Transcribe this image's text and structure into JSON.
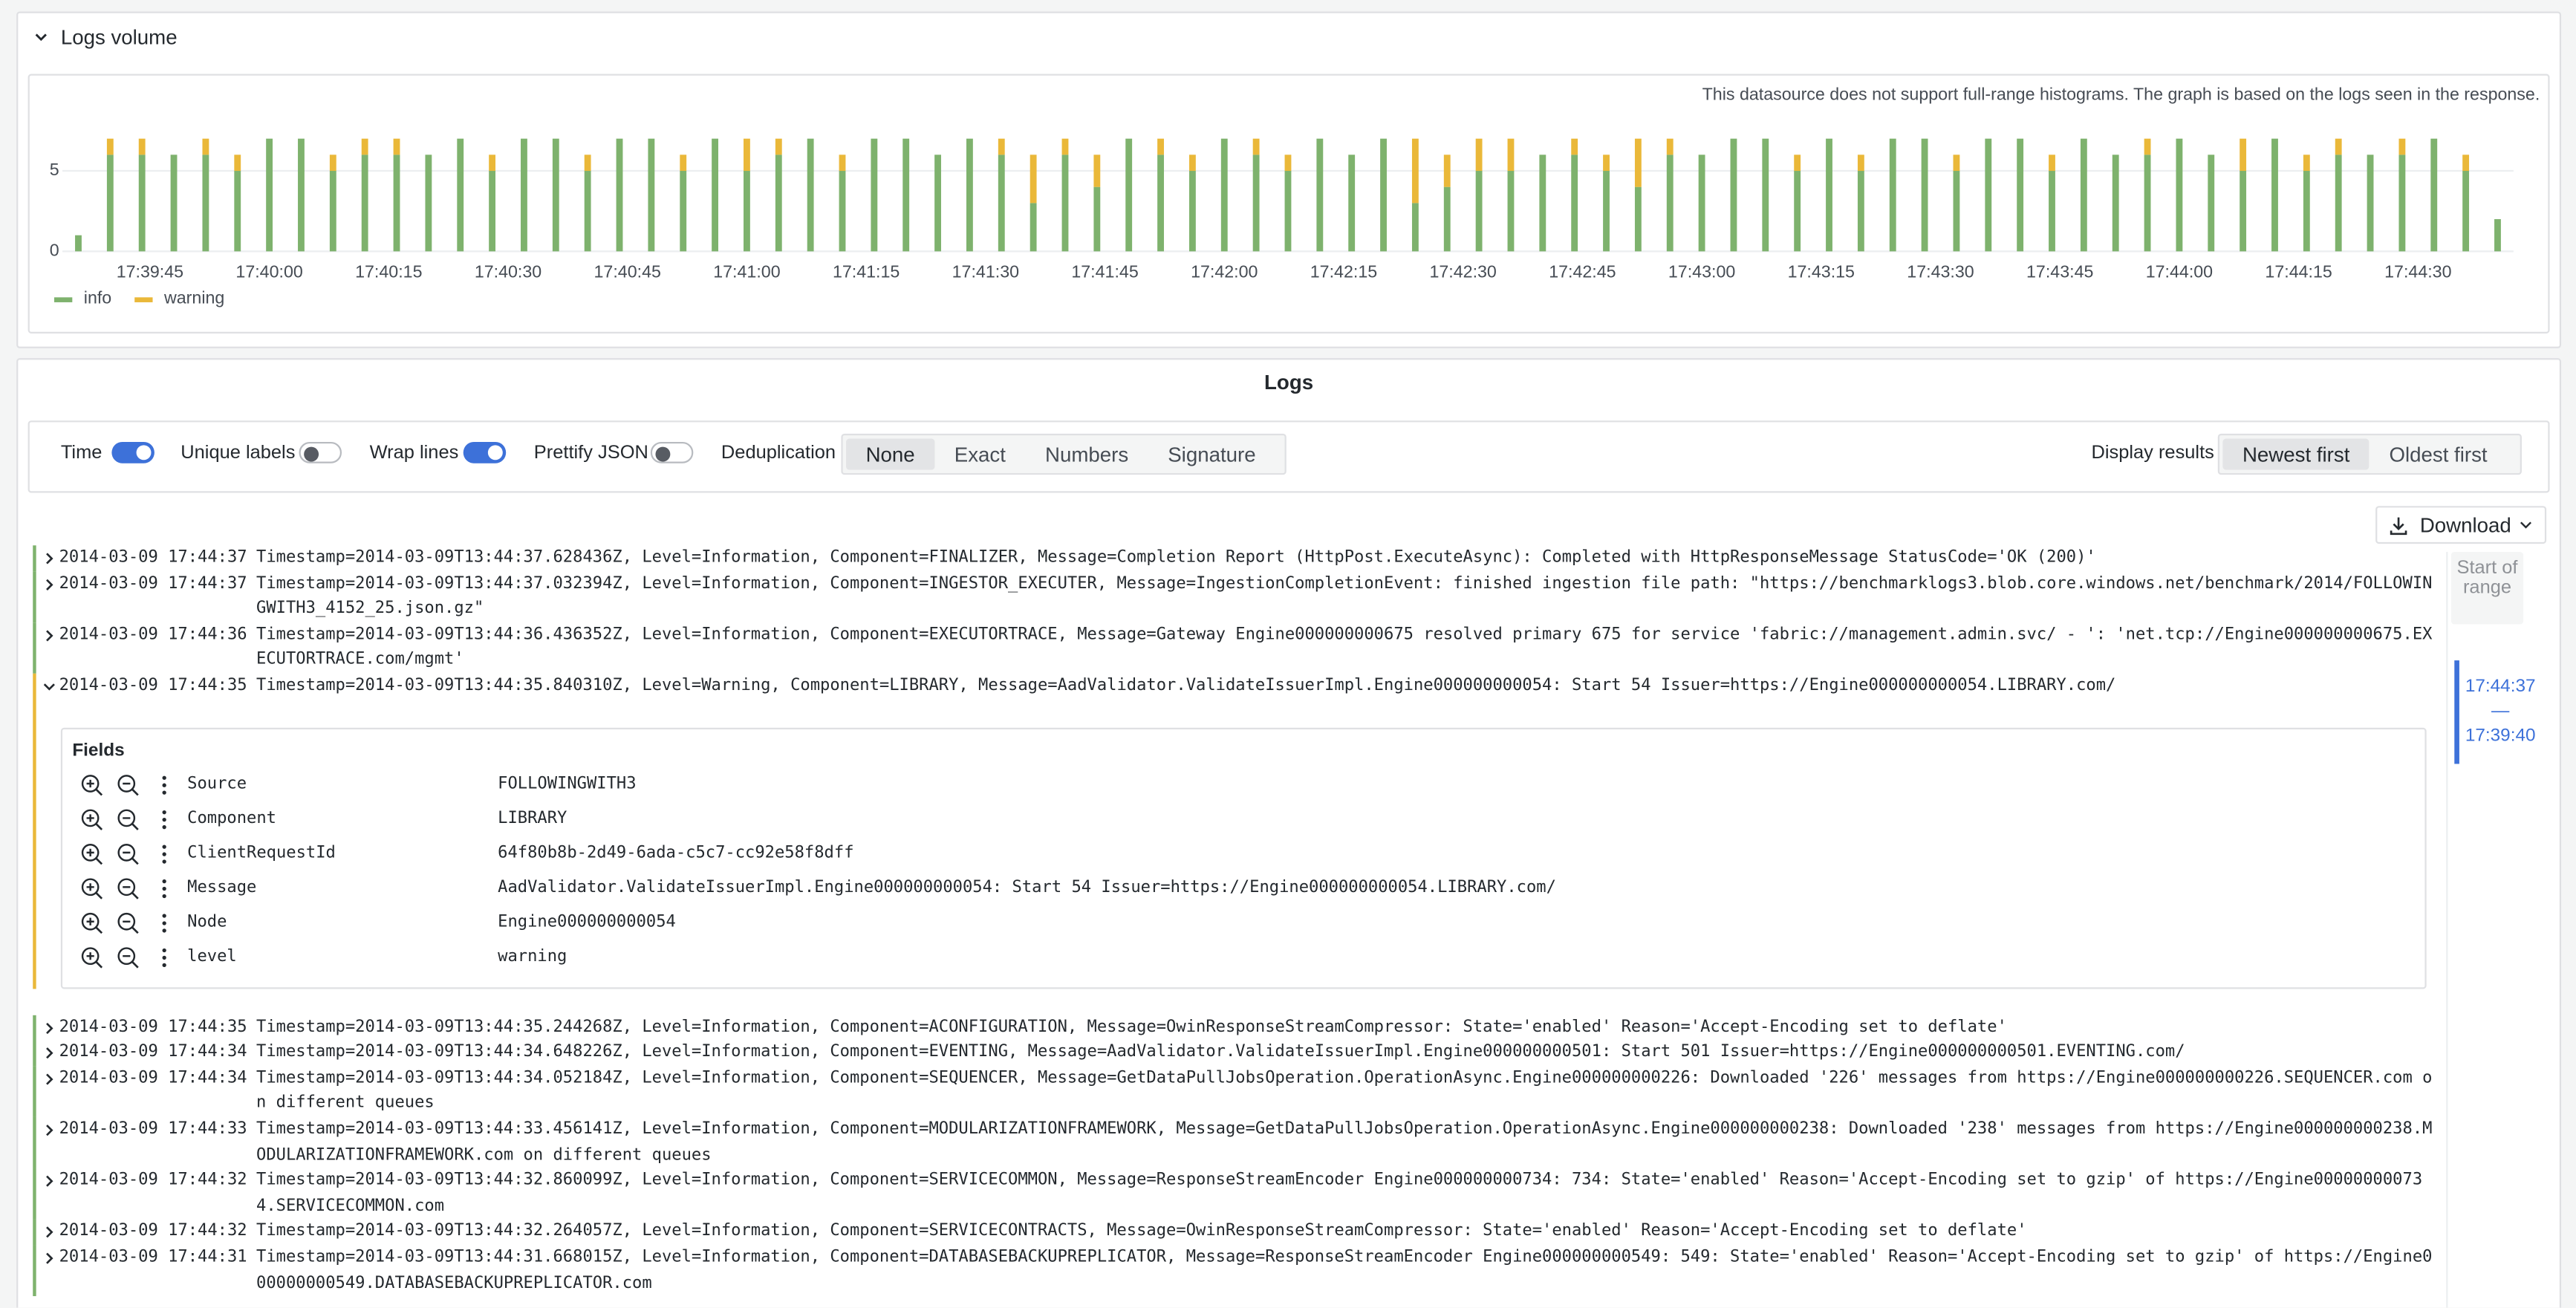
{
  "header": {
    "title": "Logs volume"
  },
  "chart_data": {
    "type": "bar",
    "stacked": true,
    "note": "This datasource does not support full-range histograms. The graph is based on the logs seen in the response.",
    "x": [
      "17:39:36",
      "17:39:40",
      "17:39:44",
      "17:39:48",
      "17:39:52",
      "17:39:56",
      "17:40:00",
      "17:40:04",
      "17:40:08",
      "17:40:12",
      "17:40:16",
      "17:40:20",
      "17:40:24",
      "17:40:28",
      "17:40:32",
      "17:40:36",
      "17:40:40",
      "17:40:44",
      "17:40:48",
      "17:40:52",
      "17:40:56",
      "17:41:00",
      "17:41:04",
      "17:41:08",
      "17:41:12",
      "17:41:16",
      "17:41:20",
      "17:41:24",
      "17:41:28",
      "17:41:32",
      "17:41:36",
      "17:41:40",
      "17:41:44",
      "17:41:48",
      "17:41:52",
      "17:41:56",
      "17:42:00",
      "17:42:04",
      "17:42:08",
      "17:42:12",
      "17:42:16",
      "17:42:20",
      "17:42:24",
      "17:42:28",
      "17:42:32",
      "17:42:36",
      "17:42:40",
      "17:42:44",
      "17:42:48",
      "17:42:52",
      "17:42:56",
      "17:43:00",
      "17:43:04",
      "17:43:08",
      "17:43:12",
      "17:43:16",
      "17:43:20",
      "17:43:24",
      "17:43:28",
      "17:43:32",
      "17:43:36",
      "17:43:40",
      "17:43:44",
      "17:43:48",
      "17:43:52",
      "17:43:56",
      "17:44:00",
      "17:44:04",
      "17:44:08",
      "17:44:12",
      "17:44:16",
      "17:44:20",
      "17:44:24",
      "17:44:28",
      "17:44:32",
      "17:44:36",
      "17:44:40"
    ],
    "series": [
      {
        "name": "info",
        "color": "#7eb26d",
        "values": [
          1,
          6,
          6,
          6,
          6,
          5,
          7,
          7,
          5,
          6,
          6,
          6,
          7,
          5,
          7,
          7,
          5,
          7,
          7,
          5,
          7,
          5,
          6,
          7,
          5,
          7,
          7,
          6,
          7,
          6,
          3,
          6,
          4,
          7,
          6,
          5,
          7,
          6,
          5,
          7,
          6,
          7,
          3,
          4,
          5,
          5,
          6,
          6,
          5,
          4,
          6,
          6,
          7,
          7,
          5,
          7,
          5,
          7,
          7,
          5,
          7,
          7,
          5,
          7,
          6,
          6,
          7,
          6,
          5,
          7,
          5,
          6,
          6,
          6,
          7,
          5,
          2
        ]
      },
      {
        "name": "warning",
        "color": "#eab839",
        "values": [
          0,
          1,
          1,
          0,
          1,
          1,
          0,
          0,
          1,
          1,
          1,
          0,
          0,
          1,
          0,
          0,
          1,
          0,
          0,
          1,
          0,
          2,
          1,
          0,
          1,
          0,
          0,
          0,
          0,
          1,
          3,
          1,
          2,
          0,
          1,
          1,
          0,
          1,
          1,
          0,
          0,
          0,
          4,
          2,
          2,
          2,
          0,
          1,
          1,
          3,
          1,
          0,
          0,
          0,
          1,
          0,
          1,
          0,
          0,
          1,
          0,
          0,
          1,
          0,
          0,
          1,
          0,
          0,
          2,
          0,
          1,
          1,
          0,
          1,
          0,
          1,
          0
        ]
      }
    ],
    "xlim": [
      "17:39:34",
      "17:44:42"
    ],
    "xticks": [
      "17:39:45",
      "17:40:00",
      "17:40:15",
      "17:40:30",
      "17:40:45",
      "17:41:00",
      "17:41:15",
      "17:41:30",
      "17:41:45",
      "17:42:00",
      "17:42:15",
      "17:42:30",
      "17:42:45",
      "17:43:00",
      "17:43:15",
      "17:43:30",
      "17:43:45",
      "17:44:00",
      "17:44:15",
      "17:44:30"
    ],
    "ylim": [
      0,
      7.5
    ],
    "yticks": [
      0,
      5
    ],
    "grid": true,
    "legend": "bottom-left"
  },
  "logs": {
    "title": "Logs",
    "toggles": [
      {
        "label": "Time",
        "on": true
      },
      {
        "label": "Unique labels",
        "on": false
      },
      {
        "label": "Wrap lines",
        "on": true
      },
      {
        "label": "Prettify JSON",
        "on": false
      }
    ],
    "dedup_label": "Deduplication",
    "dedup_options": [
      {
        "label": "None",
        "selected": true
      },
      {
        "label": "Exact",
        "selected": false
      },
      {
        "label": "Numbers",
        "selected": false
      },
      {
        "label": "Signature",
        "selected": false
      }
    ],
    "display_label": "Display results",
    "display_options": [
      {
        "label": "Newest first",
        "selected": true
      },
      {
        "label": "Oldest first",
        "selected": false
      }
    ],
    "download": "Download",
    "rows": [
      {
        "level": "info",
        "time": "2014-03-09 17:44:37",
        "message": "Timestamp=2014-03-09T13:44:37.628436Z, Level=Information, Component=FINALIZER, Message=Completion Report (HttpPost.ExecuteAsync): Completed with HttpResponseMessage StatusCode='OK (200)'"
      },
      {
        "level": "info",
        "time": "2014-03-09 17:44:37",
        "message": "Timestamp=2014-03-09T13:44:37.032394Z, Level=Information, Component=INGESTOR_EXECUTER, Message=IngestionCompletionEvent: finished ingestion file path: \"https://benchmarklogs3.blob.core.windows.net/benchmark/2014/FOLLOWINGWITH3_4152_25.json.gz\""
      },
      {
        "level": "info",
        "time": "2014-03-09 17:44:36",
        "message": "Timestamp=2014-03-09T13:44:36.436352Z, Level=Information, Component=EXECUTORTRACE, Message=Gateway Engine000000000675 resolved primary 675 for service 'fabric://management.admin.svc/ - ': 'net.tcp://Engine000000000675.EXECUTORTRACE.com/mgmt'"
      },
      {
        "level": "warning",
        "time": "2014-03-09 17:44:35",
        "message": "Timestamp=2014-03-09T13:44:35.840310Z, Level=Warning, Component=LIBRARY, Message=AadValidator.ValidateIssuerImpl.Engine000000000054: Start 54 Issuer=https://Engine000000000054.LIBRARY.com/",
        "details": {
          "title": "Fields",
          "fields": [
            {
              "name": "Source",
              "value": "FOLLOWINGWITH3"
            },
            {
              "name": "Component",
              "value": "LIBRARY"
            },
            {
              "name": "ClientRequestId",
              "value": "64f80b8b-2d49-6ada-c5c7-cc92e58f8dff"
            },
            {
              "name": "Message",
              "value": "AadValidator.ValidateIssuerImpl.Engine000000000054: Start 54 Issuer=https://Engine000000000054.LIBRARY.com/"
            },
            {
              "name": "Node",
              "value": "Engine000000000054"
            },
            {
              "name": "level",
              "value": "warning"
            }
          ]
        }
      },
      {
        "level": "info",
        "time": "2014-03-09 17:44:35",
        "message": "Timestamp=2014-03-09T13:44:35.244268Z, Level=Information, Component=ACONFIGURATION, Message=OwinResponseStreamCompressor: State='enabled' Reason='Accept-Encoding set to deflate'"
      },
      {
        "level": "info",
        "time": "2014-03-09 17:44:34",
        "message": "Timestamp=2014-03-09T13:44:34.648226Z, Level=Information, Component=EVENTING, Message=AadValidator.ValidateIssuerImpl.Engine000000000501: Start 501 Issuer=https://Engine000000000501.EVENTING.com/"
      },
      {
        "level": "info",
        "time": "2014-03-09 17:44:34",
        "message": "Timestamp=2014-03-09T13:44:34.052184Z, Level=Information, Component=SEQUENCER, Message=GetDataPullJobsOperation.OperationAsync.Engine000000000226: Downloaded '226' messages from https://Engine000000000226.SEQUENCER.com on different queues"
      },
      {
        "level": "info",
        "time": "2014-03-09 17:44:33",
        "message": "Timestamp=2014-03-09T13:44:33.456141Z, Level=Information, Component=MODULARIZATIONFRAMEWORK, Message=GetDataPullJobsOperation.OperationAsync.Engine000000000238: Downloaded '238' messages from https://Engine000000000238.MODULARIZATIONFRAMEWORK.com on different queues"
      },
      {
        "level": "info",
        "time": "2014-03-09 17:44:32",
        "message": "Timestamp=2014-03-09T13:44:32.860099Z, Level=Information, Component=SERVICECOMMON, Message=ResponseStreamEncoder Engine000000000734: 734: State='enabled' Reason='Accept-Encoding set to gzip' of https://Engine000000000734.SERVICECOMMON.com"
      },
      {
        "level": "info",
        "time": "2014-03-09 17:44:32",
        "message": "Timestamp=2014-03-09T13:44:32.264057Z, Level=Information, Component=SERVICECONTRACTS, Message=OwinResponseStreamCompressor: State='enabled' Reason='Accept-Encoding set to deflate'"
      },
      {
        "level": "info",
        "time": "2014-03-09 17:44:31",
        "message": "Timestamp=2014-03-09T13:44:31.668015Z, Level=Information, Component=DATABASEBACKUPREPLICATOR, Message=ResponseStreamEncoder Engine000000000549: 549: State='enabled' Reason='Accept-Encoding set to gzip' of https://Engine000000000549.DATABASEBACKUPREPLICATOR.com"
      }
    ],
    "range": {
      "start": "Start of range",
      "from": "17:44:37",
      "separator": "—",
      "to": "17:39:40"
    }
  }
}
